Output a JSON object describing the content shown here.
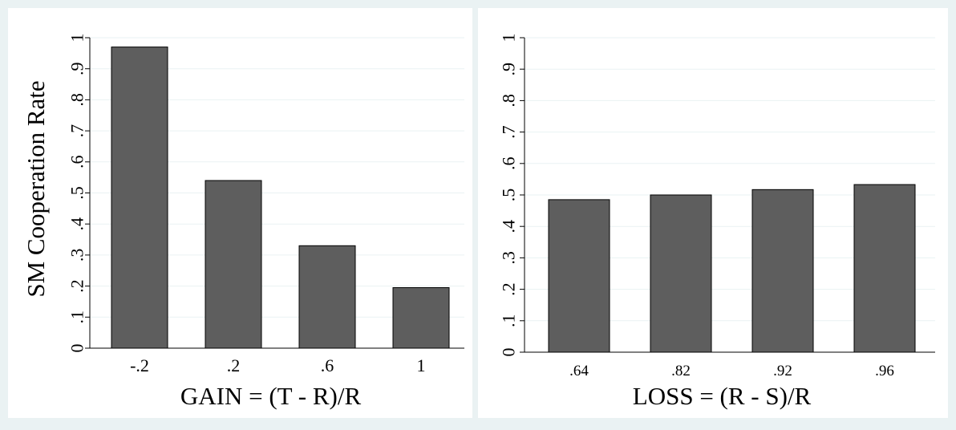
{
  "chart_data": [
    {
      "type": "bar",
      "categories": [
        "-.2",
        ".2",
        ".6",
        "1"
      ],
      "values": [
        0.97,
        0.54,
        0.33,
        0.195
      ],
      "xlabel": "GAIN = (T - R)/R",
      "ylabel": "SM Cooperation Rate",
      "ylim": [
        0,
        1
      ],
      "yticks": [
        "0",
        ".1",
        ".2",
        ".3",
        ".4",
        ".5",
        ".6",
        ".7",
        ".8",
        ".9",
        "1"
      ],
      "grid": true,
      "bar_color": "#5e5e5e"
    },
    {
      "type": "bar",
      "categories": [
        ".64",
        ".82",
        ".92",
        ".96"
      ],
      "values": [
        0.485,
        0.5,
        0.517,
        0.533
      ],
      "xlabel": "LOSS = (R - S)/R",
      "ylabel": "",
      "ylim": [
        0,
        1
      ],
      "yticks": [
        "0",
        ".1",
        ".2",
        ".3",
        ".4",
        ".5",
        ".6",
        ".7",
        ".8",
        ".9",
        "1"
      ],
      "grid": true,
      "bar_color": "#5e5e5e"
    }
  ],
  "colors": {
    "background": "#eaf2f3",
    "panel": "#ffffff",
    "gridline": "#eaf2f3",
    "bar": "#5e5e5e"
  }
}
